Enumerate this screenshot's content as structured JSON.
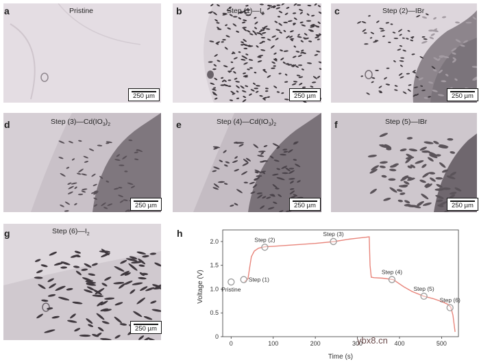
{
  "panels": [
    {
      "letter": "a",
      "title": "Pristine",
      "scale": "250 µm"
    },
    {
      "letter": "b",
      "title": "Step (1)—I",
      "sub": "2",
      "scale": "250 µm"
    },
    {
      "letter": "c",
      "title": "Step (2)—IBr",
      "scale": "250 µm"
    },
    {
      "letter": "d",
      "title": "Step (3)—Cd(IO",
      "sub": "3",
      "tail": ")",
      "sub2": "2",
      "scale": "250 µm"
    },
    {
      "letter": "e",
      "title": "Step (4)—Cd(IO",
      "sub": "3",
      "tail": ")",
      "sub2": "2",
      "scale": "250 µm"
    },
    {
      "letter": "f",
      "title": "Step (5)—IBr",
      "scale": "250 µm"
    },
    {
      "letter": "g",
      "title": "Step (6)—I",
      "sub": "2",
      "scale": "250 µm"
    }
  ],
  "chart_label": "h",
  "chart_data": {
    "type": "line",
    "xlabel": "Time (s)",
    "ylabel": "Voltage (V)",
    "xlim": [
      -20,
      540
    ],
    "ylim": [
      0,
      2.1
    ],
    "xticks": [
      0,
      100,
      200,
      300,
      400,
      500
    ],
    "yticks": [
      0,
      0.5,
      1.0,
      1.5,
      2.0
    ],
    "line_color": "#e8847a",
    "marker_color": "#9a9a9a",
    "series": [
      {
        "x": [
          32,
          36,
          40,
          44,
          48,
          55,
          65,
          80,
          100,
          150,
          200,
          245,
          280,
          300,
          320,
          328,
          330,
          333,
          340,
          360,
          385,
          410,
          430,
          458,
          480,
          500,
          515,
          522,
          527,
          532
        ],
        "y": [
          1.16,
          1.18,
          1.22,
          1.45,
          1.68,
          1.8,
          1.86,
          1.89,
          1.9,
          1.93,
          1.96,
          2.0,
          2.05,
          2.07,
          2.09,
          2.1,
          1.5,
          1.25,
          1.24,
          1.23,
          1.2,
          1.05,
          0.95,
          0.85,
          0.8,
          0.74,
          0.68,
          0.62,
          0.45,
          0.1
        ]
      }
    ],
    "annotations": [
      {
        "label": "Pristine",
        "x": 0,
        "y": 1.15,
        "pos": "below"
      },
      {
        "label": "Step (1)",
        "x": 30,
        "y": 1.2,
        "pos": "right"
      },
      {
        "label": "Step (2)",
        "x": 80,
        "y": 1.88,
        "pos": "above"
      },
      {
        "label": "Step (3)",
        "x": 243,
        "y": 2.0,
        "pos": "above"
      },
      {
        "label": "Step (4)",
        "x": 382,
        "y": 1.2,
        "pos": "above"
      },
      {
        "label": "Step (5)",
        "x": 458,
        "y": 0.85,
        "pos": "above"
      },
      {
        "label": "Step (6)",
        "x": 520,
        "y": 0.61,
        "pos": "above"
      }
    ]
  },
  "watermark": "ybx8.cn"
}
